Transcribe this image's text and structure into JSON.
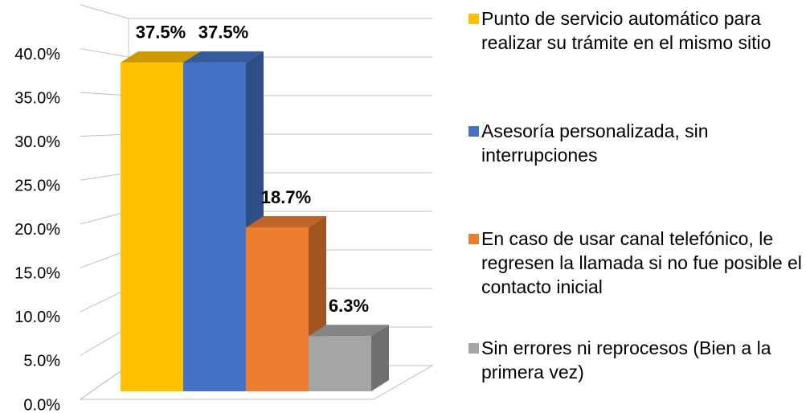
{
  "chart_data": {
    "type": "bar3d",
    "series": [
      {
        "name": "Punto de servicio automático para realizar su trámite en el mismo sitio",
        "color": "#ffc000",
        "values": [
          37.5
        ],
        "value_labels": [
          "37.5%"
        ]
      },
      {
        "name": "Asesoría personalizada, sin interrupciones",
        "color": "#4472c4",
        "values": [
          37.5
        ],
        "value_labels": [
          "37.5%"
        ]
      },
      {
        "name": "En caso de usar canal telefónico, le regresen la llamada si no fue posible el contacto inicial",
        "color": "#ed7d31",
        "values": [
          18.7
        ],
        "value_labels": [
          "18.7%"
        ]
      },
      {
        "name": "Sin errores ni reprocesos (Bien a la primera vez)",
        "color": "#a5a5a5",
        "values": [
          6.3
        ],
        "value_labels": [
          "6.3%"
        ]
      }
    ],
    "ylim": [
      0,
      45
    ],
    "yticks": [
      {
        "value": 0,
        "label": "0.0%"
      },
      {
        "value": 5,
        "label": "5.0%"
      },
      {
        "value": 10,
        "label": "10.0%"
      },
      {
        "value": 15,
        "label": "15.0%"
      },
      {
        "value": 20,
        "label": "20.0%"
      },
      {
        "value": 25,
        "label": "25.0%"
      },
      {
        "value": 30,
        "label": "30.0%"
      },
      {
        "value": 35,
        "label": "35.0%"
      },
      {
        "value": 40,
        "label": "40.0%"
      }
    ],
    "grid": true,
    "legend": "right"
  }
}
